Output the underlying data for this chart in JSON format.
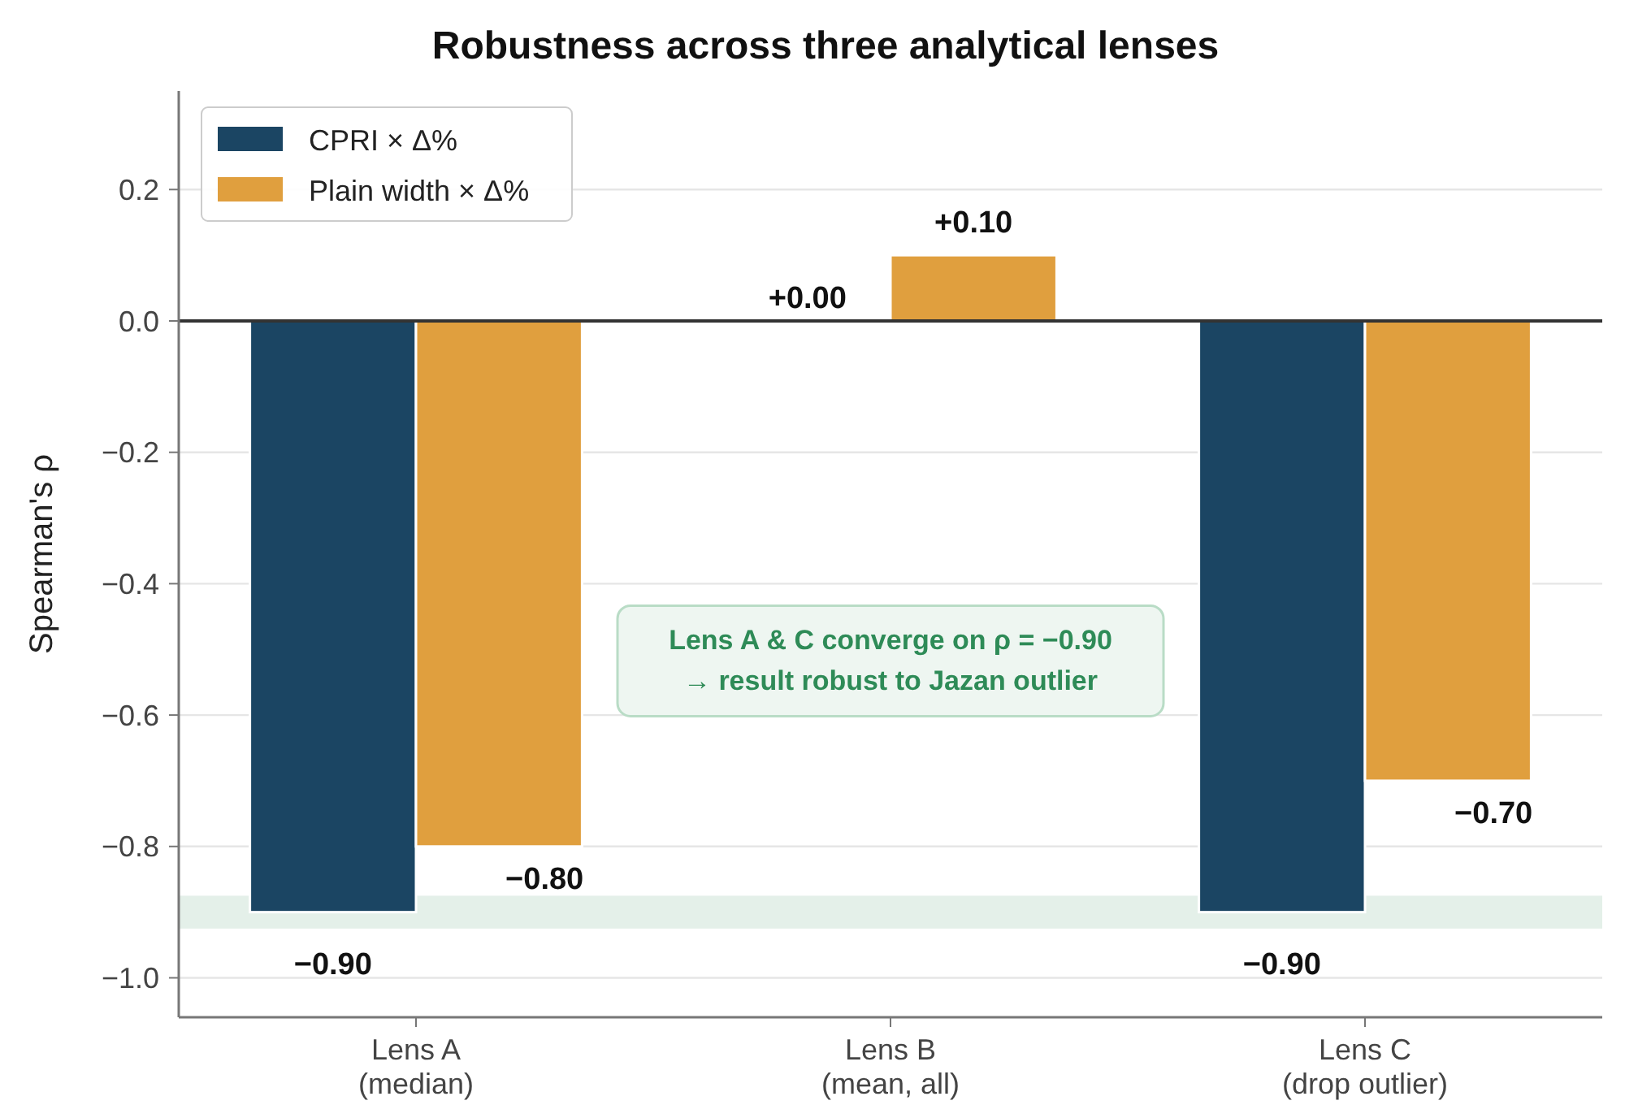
{
  "chart_data": {
    "type": "bar",
    "title": "Robustness across three analytical lenses",
    "ylabel": "Spearman's  ρ",
    "categories": [
      "Lens A\n(median)",
      "Lens B\n(mean, all)",
      "Lens C\n(drop outlier)"
    ],
    "series": [
      {
        "name": "CPRI × Δ%",
        "color": "#1b4563",
        "values": [
          -0.9,
          0.0,
          -0.9
        ],
        "value_labels": [
          "−0.90",
          "+0.00",
          "−0.90"
        ]
      },
      {
        "name": "Plain width × Δ%",
        "color": "#e09f3e",
        "values": [
          -0.8,
          0.1,
          -0.7
        ],
        "value_labels": [
          "−0.80",
          "+0.10",
          "−0.70"
        ]
      }
    ],
    "ylim": [
      -1.06,
      0.35
    ],
    "yticks": [
      {
        "value": -1,
        "label": "−1.0"
      },
      {
        "value": -0.8,
        "label": "−0.8"
      },
      {
        "value": -0.6,
        "label": "−0.6"
      },
      {
        "value": -0.4,
        "label": "−0.4"
      },
      {
        "value": -0.2,
        "label": "−0.2"
      },
      {
        "value": 0,
        "label": "0.0"
      },
      {
        "value": 0.2,
        "label": "0.2"
      }
    ],
    "grid": "y",
    "legend": "top left",
    "ref_lines": [
      {
        "axis": "y",
        "value": 0,
        "color": "#333333"
      }
    ],
    "bands": [
      {
        "axis": "y",
        "from": -0.925,
        "to": -0.875,
        "color": "#2e8b57"
      }
    ],
    "annotations": [
      "Lens A & C converge on ρ = −0.90\n→  result robust to Jazan outlier"
    ]
  }
}
